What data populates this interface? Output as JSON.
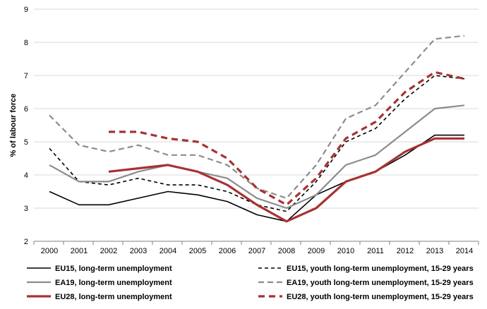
{
  "chart_data": {
    "type": "line",
    "title": "",
    "xlabel": "",
    "ylabel": "% of labour force",
    "ylim": [
      2,
      9
    ],
    "yticks": [
      "2",
      "3",
      "4",
      "5",
      "6",
      "7",
      "8",
      "9"
    ],
    "categories": [
      "2000",
      "2001",
      "2002",
      "2003",
      "2004",
      "2005",
      "2006",
      "2007",
      "2008",
      "2009",
      "2010",
      "2011",
      "2012",
      "2013",
      "2014"
    ],
    "grid": "horizontal",
    "legend_position": "bottom",
    "series": [
      {
        "name": "EU15, long-term unemployment",
        "color": "#000000",
        "dash": "solid",
        "weight": "thin",
        "values": [
          3.5,
          3.1,
          3.1,
          3.3,
          3.5,
          3.4,
          3.2,
          2.8,
          2.6,
          3.4,
          3.8,
          4.1,
          4.6,
          5.2,
          5.2
        ]
      },
      {
        "name": "EU15, youth long-term unemployment, 15-29 years",
        "color": "#000000",
        "dash": "dashed",
        "weight": "thin",
        "values": [
          4.8,
          3.8,
          3.7,
          3.9,
          3.7,
          3.7,
          3.5,
          3.1,
          2.9,
          3.8,
          5.0,
          5.4,
          6.3,
          7.0,
          6.9
        ]
      },
      {
        "name": "EA19, long-term unemployment",
        "color": "#8c8c8c",
        "dash": "solid",
        "weight": "medium",
        "values": [
          4.3,
          3.8,
          3.8,
          4.1,
          4.3,
          4.1,
          3.9,
          3.3,
          3.0,
          3.4,
          4.3,
          4.6,
          5.3,
          6.0,
          6.1
        ]
      },
      {
        "name": "EA19, youth long-term unemployment, 15-29 years",
        "color": "#8c8c8c",
        "dash": "dashed",
        "weight": "medium",
        "values": [
          5.8,
          4.9,
          4.7,
          4.9,
          4.6,
          4.6,
          4.3,
          3.6,
          3.3,
          4.3,
          5.7,
          6.1,
          7.1,
          8.1,
          8.2
        ]
      },
      {
        "name": "EU28, long-term unemployment",
        "color": "#a83232",
        "dash": "solid",
        "weight": "thick",
        "values": [
          null,
          null,
          4.1,
          4.2,
          4.3,
          4.1,
          3.7,
          3.1,
          2.6,
          3.0,
          3.8,
          4.1,
          4.7,
          5.1,
          5.1
        ]
      },
      {
        "name": "EU28, youth long-term unemployment, 15-29 years",
        "color": "#a83232",
        "dash": "dashed",
        "weight": "thick",
        "values": [
          null,
          null,
          5.3,
          5.3,
          5.1,
          5.0,
          4.5,
          3.6,
          3.1,
          3.9,
          5.1,
          5.6,
          6.5,
          7.1,
          6.9
        ]
      }
    ]
  }
}
